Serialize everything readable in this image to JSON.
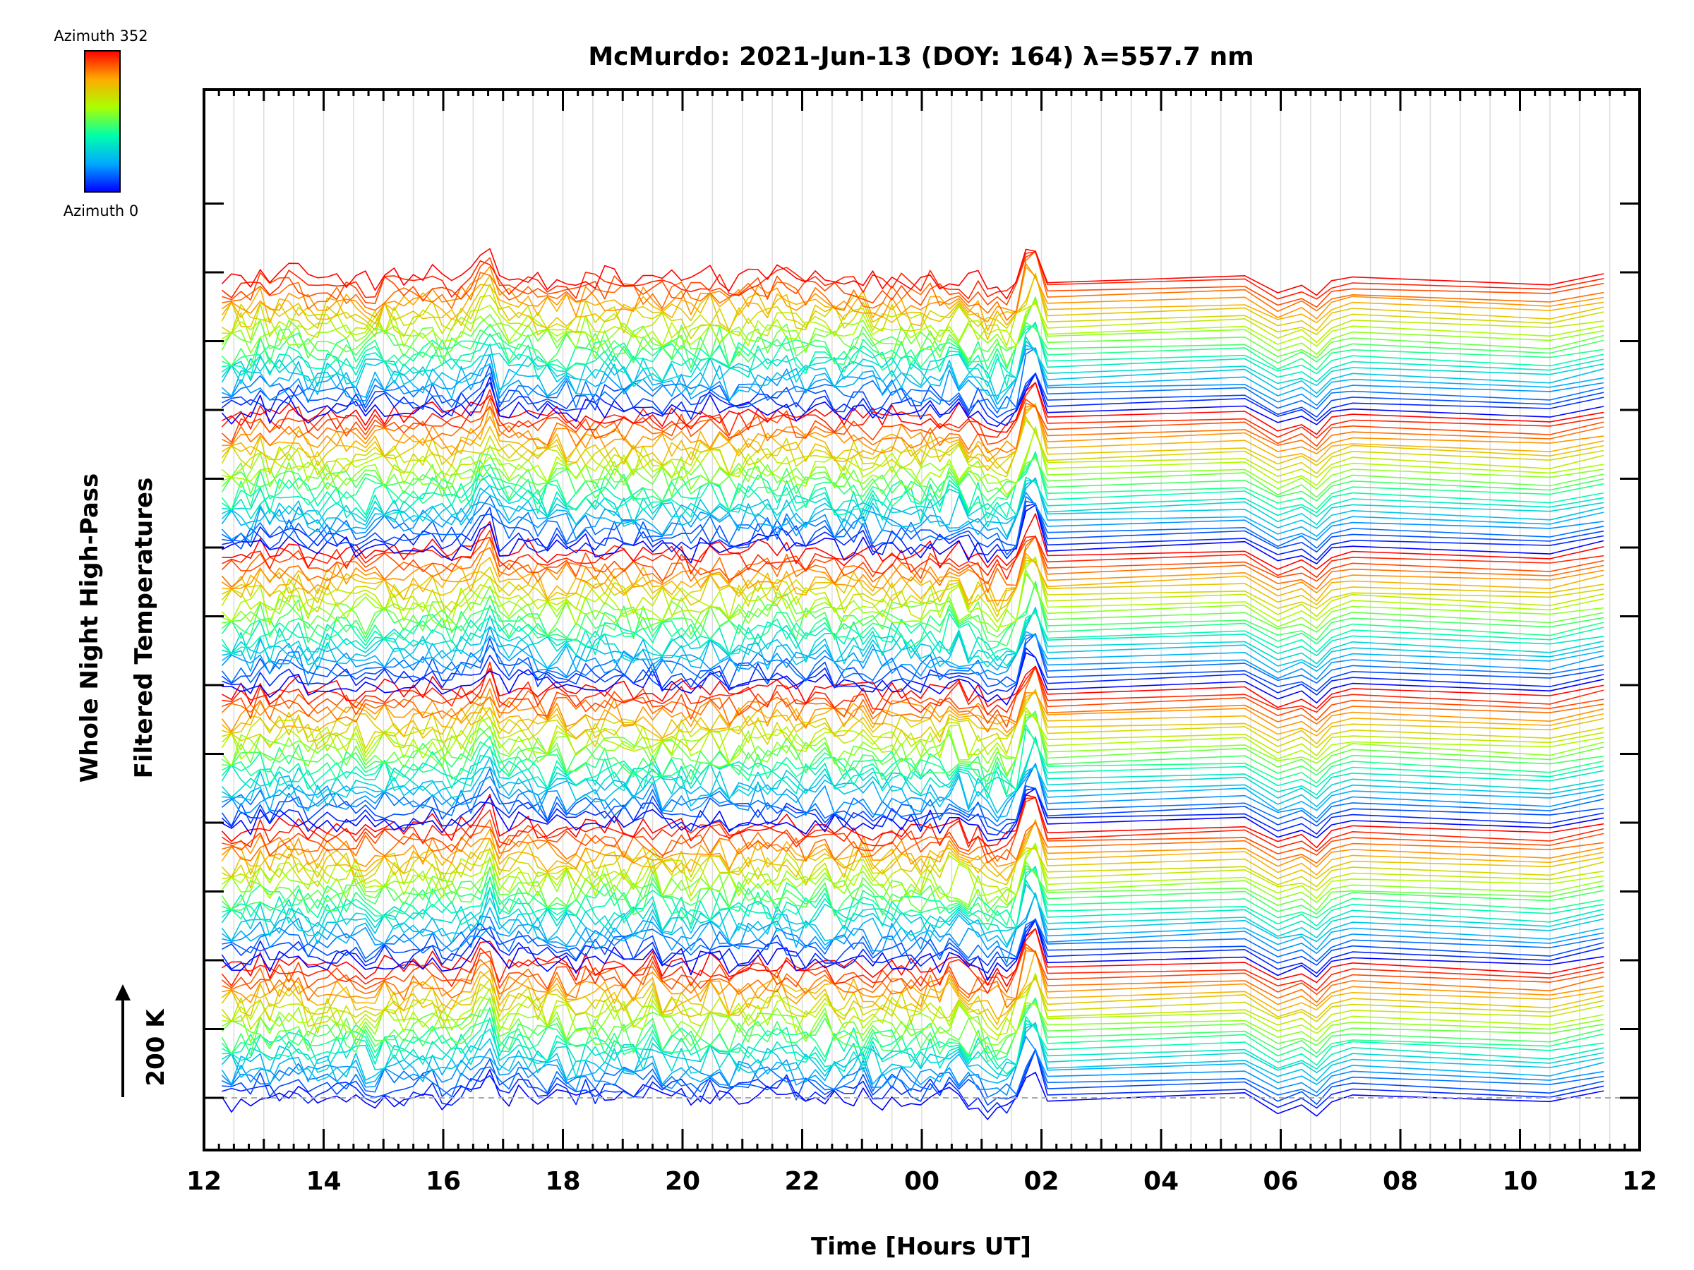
{
  "chart_data": {
    "type": "line",
    "title": "McMurdo: 2021-Jun-13 (DOY: 164) λ=557.7 nm",
    "xlabel": "Time [Hours UT]",
    "ylabel_lines": [
      "Whole Night High-Pass",
      "Filtered Temperatures"
    ],
    "x_tick_labels": [
      "12",
      "14",
      "16",
      "18",
      "20",
      "22",
      "00",
      "02",
      "04",
      "06",
      "08",
      "10",
      "12"
    ],
    "xlim": [
      12,
      36
    ],
    "scale_bar": "200 K",
    "colorbar": {
      "top_label": "Azimuth 352",
      "bottom_label": "Azimuth 0",
      "azimuth_range": [
        0,
        352
      ],
      "colors": [
        "#0000ff",
        "#00aaff",
        "#00ffaa",
        "#aaff00",
        "#ffaa00",
        "#ff0000"
      ]
    },
    "grid": true,
    "series_groups": 6,
    "azimuth_steps_per_group": 24,
    "groups": [
      {
        "baseline": 0,
        "note": "bottom band"
      },
      {
        "baseline": 1,
        "note": ""
      },
      {
        "baseline": 2,
        "note": ""
      },
      {
        "baseline": 3,
        "note": ""
      },
      {
        "baseline": 4,
        "note": ""
      },
      {
        "baseline": 5,
        "note": "top band"
      }
    ],
    "shared_features": {
      "spike_near_hours": [
        16.7,
        25.8
      ],
      "gap_hours": [
        26.1,
        29.4
      ],
      "ramp_end_hours": [
        29.4,
        30.6,
        31.2,
        34.5,
        35.4
      ]
    }
  }
}
